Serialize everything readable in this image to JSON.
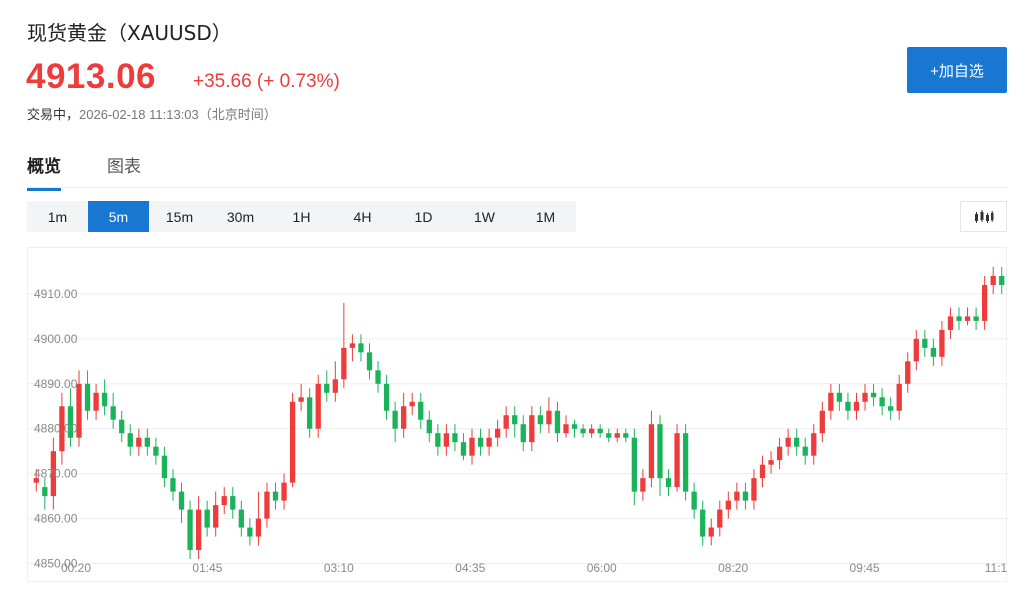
{
  "header": {
    "title": "现货黄金（XAUUSD）",
    "price": "4913.06",
    "change": "+35.66 (+ 0.73%)",
    "status": "交易中，",
    "timestamp": "2026-02-18 11:13:03（北京时间）",
    "watch_label": "+加自选"
  },
  "tabs": [
    {
      "label": "概览",
      "active": true
    },
    {
      "label": "图表",
      "active": false
    }
  ],
  "periods": [
    "1m",
    "5m",
    "15m",
    "30m",
    "1H",
    "4H",
    "1D",
    "1W",
    "1M"
  ],
  "active_period": "5m",
  "icons": {
    "chart_type": "candlestick-icon"
  },
  "colors": {
    "up": "#ee3b3b",
    "down": "#19b35a",
    "accent": "#1877d1"
  },
  "chart_data": {
    "type": "candlestick",
    "title": "",
    "xlabel": "",
    "ylabel": "",
    "ylim": [
      4849,
      4918
    ],
    "y_ticks": [
      "4910.00",
      "4900.00",
      "4890.00",
      "4880.00",
      "4870.00",
      "4860.00",
      "4850.00"
    ],
    "x_ticks": [
      "00:20",
      "01:45",
      "03:10",
      "04:35",
      "06:00",
      "08:20",
      "09:45",
      "11:1"
    ],
    "grid": true,
    "candles": [
      [
        4868,
        4869,
        4871,
        4866
      ],
      [
        4867,
        4865,
        4869,
        4862
      ],
      [
        4865,
        4875,
        4878,
        4862
      ],
      [
        4875,
        4885,
        4888,
        4872
      ],
      [
        4885,
        4878,
        4889,
        4876
      ],
      [
        4878,
        4890,
        4893,
        4876
      ],
      [
        4890,
        4884,
        4893,
        4882
      ],
      [
        4884,
        4888,
        4890,
        4882
      ],
      [
        4888,
        4885,
        4891,
        4883
      ],
      [
        4885,
        4882,
        4888,
        4880
      ],
      [
        4882,
        4879,
        4884,
        4877
      ],
      [
        4879,
        4876,
        4881,
        4874
      ],
      [
        4876,
        4878,
        4880,
        4874
      ],
      [
        4878,
        4876,
        4880,
        4874
      ],
      [
        4876,
        4874,
        4878,
        4872
      ],
      [
        4874,
        4869,
        4876,
        4867
      ],
      [
        4869,
        4866,
        4871,
        4864
      ],
      [
        4866,
        4862,
        4868,
        4859
      ],
      [
        4862,
        4853,
        4864,
        4851
      ],
      [
        4853,
        4862,
        4865,
        4851
      ],
      [
        4862,
        4858,
        4864,
        4856
      ],
      [
        4858,
        4863,
        4866,
        4856
      ],
      [
        4863,
        4865,
        4867,
        4861
      ],
      [
        4865,
        4862,
        4867,
        4860
      ],
      [
        4862,
        4858,
        4864,
        4856
      ],
      [
        4858,
        4856,
        4860,
        4854
      ],
      [
        4856,
        4860,
        4866,
        4854
      ],
      [
        4860,
        4866,
        4868,
        4858
      ],
      [
        4866,
        4864,
        4868,
        4862
      ],
      [
        4864,
        4868,
        4870,
        4862
      ],
      [
        4868,
        4886,
        4888,
        4867
      ],
      [
        4886,
        4887,
        4890,
        4884
      ],
      [
        4887,
        4880,
        4889,
        4878
      ],
      [
        4880,
        4890,
        4892,
        4878
      ],
      [
        4890,
        4888,
        4893,
        4886
      ],
      [
        4888,
        4891,
        4895,
        4886
      ],
      [
        4891,
        4898,
        4908,
        4889
      ],
      [
        4898,
        4899,
        4901,
        4895
      ],
      [
        4899,
        4897,
        4901,
        4895
      ],
      [
        4897,
        4893,
        4899,
        4891
      ],
      [
        4893,
        4890,
        4895,
        4888
      ],
      [
        4890,
        4884,
        4892,
        4882
      ],
      [
        4884,
        4880,
        4886,
        4877
      ],
      [
        4880,
        4885,
        4888,
        4878
      ],
      [
        4885,
        4886,
        4888,
        4883
      ],
      [
        4886,
        4882,
        4888,
        4880
      ],
      [
        4882,
        4879,
        4884,
        4877
      ],
      [
        4879,
        4876,
        4881,
        4874
      ],
      [
        4876,
        4879,
        4881,
        4874
      ],
      [
        4879,
        4877,
        4881,
        4875
      ],
      [
        4877,
        4874,
        4879,
        4873
      ],
      [
        4874,
        4878,
        4880,
        4872
      ],
      [
        4878,
        4876,
        4880,
        4874
      ],
      [
        4876,
        4878,
        4880,
        4874
      ],
      [
        4878,
        4880,
        4882,
        4876
      ],
      [
        4880,
        4883,
        4885,
        4878
      ],
      [
        4883,
        4881,
        4885,
        4878
      ],
      [
        4881,
        4877,
        4883,
        4875
      ],
      [
        4877,
        4883,
        4885,
        4875
      ],
      [
        4883,
        4881,
        4885,
        4879
      ],
      [
        4881,
        4884,
        4887,
        4879
      ],
      [
        4884,
        4879,
        4886,
        4877
      ],
      [
        4879,
        4881,
        4883,
        4878
      ],
      [
        4881,
        4880,
        4882,
        4878
      ],
      [
        4880,
        4879,
        4881,
        4878
      ],
      [
        4879,
        4880,
        4881,
        4878
      ],
      [
        4880,
        4879,
        4881,
        4878
      ],
      [
        4879,
        4878,
        4880,
        4877
      ],
      [
        4878,
        4879,
        4880,
        4877
      ],
      [
        4879,
        4878,
        4880,
        4877
      ],
      [
        4878,
        4866,
        4880,
        4863
      ],
      [
        4866,
        4869,
        4871,
        4864
      ],
      [
        4869,
        4881,
        4884,
        4867
      ],
      [
        4881,
        4869,
        4883,
        4865
      ],
      [
        4869,
        4867,
        4871,
        4865
      ],
      [
        4867,
        4879,
        4881,
        4866
      ],
      [
        4879,
        4866,
        4881,
        4864
      ],
      [
        4866,
        4862,
        4868,
        4860
      ],
      [
        4862,
        4856,
        4864,
        4854
      ],
      [
        4856,
        4858,
        4860,
        4854
      ],
      [
        4858,
        4862,
        4864,
        4856
      ],
      [
        4862,
        4864,
        4866,
        4860
      ],
      [
        4864,
        4866,
        4868,
        4862
      ],
      [
        4866,
        4864,
        4868,
        4862
      ],
      [
        4864,
        4869,
        4871,
        4862
      ],
      [
        4869,
        4872,
        4874,
        4867
      ],
      [
        4872,
        4873,
        4875,
        4870
      ],
      [
        4873,
        4876,
        4878,
        4871
      ],
      [
        4876,
        4878,
        4880,
        4874
      ],
      [
        4878,
        4876,
        4880,
        4874
      ],
      [
        4876,
        4874,
        4878,
        4872
      ],
      [
        4874,
        4879,
        4881,
        4872
      ],
      [
        4879,
        4884,
        4886,
        4877
      ],
      [
        4884,
        4888,
        4890,
        4882
      ],
      [
        4888,
        4886,
        4890,
        4884
      ],
      [
        4886,
        4884,
        4888,
        4882
      ],
      [
        4884,
        4886,
        4888,
        4882
      ],
      [
        4886,
        4888,
        4890,
        4884
      ],
      [
        4888,
        4887,
        4890,
        4885
      ],
      [
        4887,
        4885,
        4889,
        4883
      ],
      [
        4885,
        4884,
        4887,
        4882
      ],
      [
        4884,
        4890,
        4892,
        4882
      ],
      [
        4890,
        4895,
        4897,
        4888
      ],
      [
        4895,
        4900,
        4902,
        4893
      ],
      [
        4900,
        4898,
        4902,
        4896
      ],
      [
        4898,
        4896,
        4900,
        4894
      ],
      [
        4896,
        4902,
        4904,
        4894
      ],
      [
        4902,
        4905,
        4907,
        4900
      ],
      [
        4905,
        4904,
        4907,
        4902
      ],
      [
        4904,
        4905,
        4907,
        4903
      ],
      [
        4905,
        4904,
        4907,
        4902
      ],
      [
        4904,
        4912,
        4914,
        4902
      ],
      [
        4912,
        4914,
        4916,
        4910
      ],
      [
        4914,
        4912,
        4916,
        4910
      ]
    ]
  }
}
